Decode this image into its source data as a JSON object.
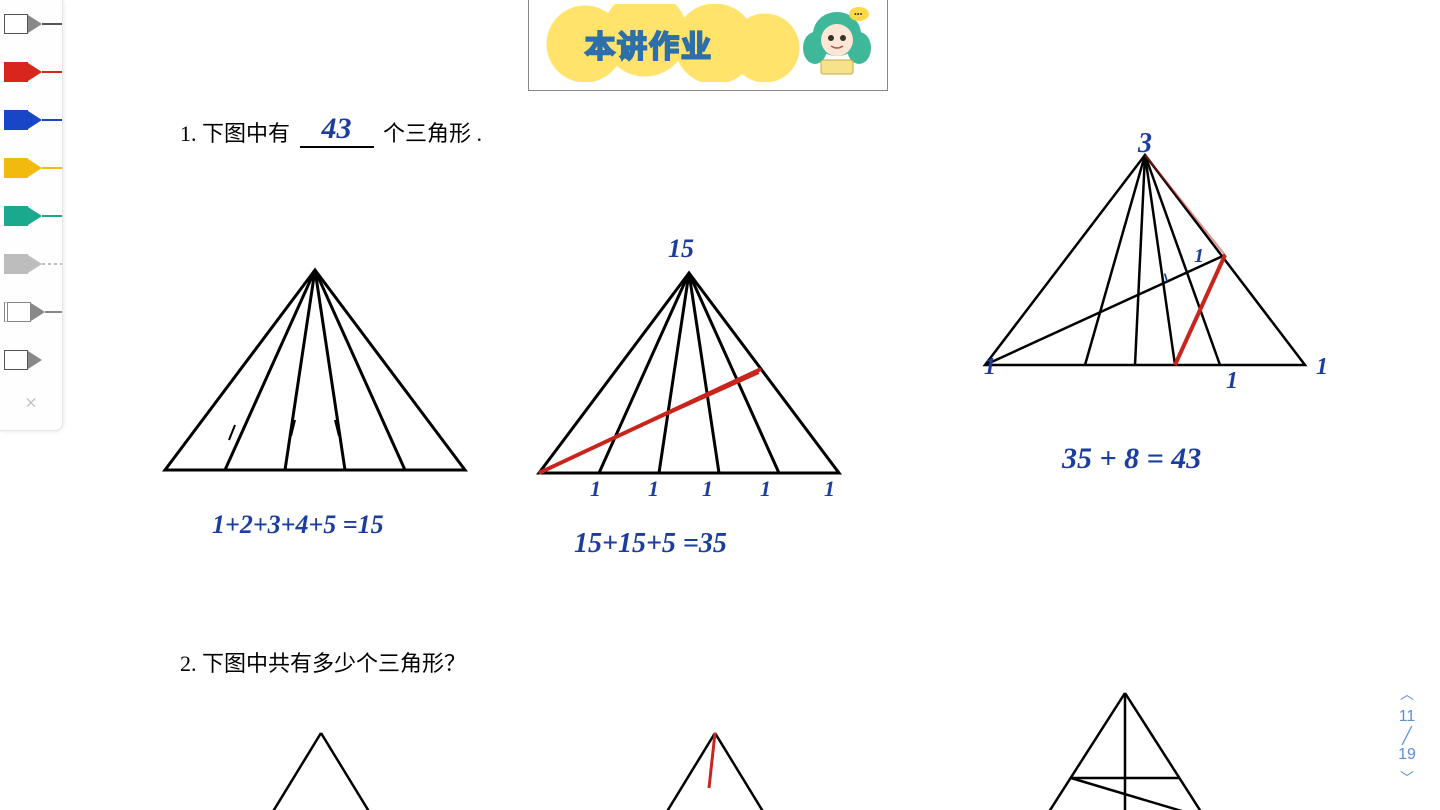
{
  "toolbar": {
    "tools": [
      {
        "name": "pencil-white",
        "fill": "#ffffff",
        "border": "#555555",
        "line": "#555555",
        "dash": "0"
      },
      {
        "name": "pencil-red",
        "fill": "#d9261c",
        "border": "#d9261c",
        "line": "#d9261c",
        "dash": "0"
      },
      {
        "name": "pencil-blue",
        "fill": "#1846c7",
        "border": "#1846c7",
        "line": "#1846c7",
        "dash": "0"
      },
      {
        "name": "pencil-yellow",
        "fill": "#f2b90f",
        "border": "#f2b90f",
        "line": "#f2b90f",
        "dash": "0"
      },
      {
        "name": "pencil-teal",
        "fill": "#1aa98c",
        "border": "#1aa98c",
        "line": "#1aa98c",
        "dash": "0"
      },
      {
        "name": "pencil-gray-dash",
        "fill": "#bdbdbd",
        "border": "#bdbdbd",
        "line": "#bdbdbd",
        "dash": "3 3"
      },
      {
        "name": "pencil-menu",
        "fill": "#ffffff",
        "border": "#888888",
        "line": "#888888",
        "dash": "0"
      },
      {
        "name": "pencil-outline",
        "fill": "#ffffff",
        "border": "#555555",
        "line": "transparent",
        "dash": "0"
      }
    ],
    "close_label": "×"
  },
  "header": {
    "title": "本讲作业"
  },
  "problems": {
    "p1": {
      "prefix": "1. 下图中有",
      "answer": "43",
      "suffix": "个三角形 ."
    },
    "p2": {
      "text": "2. 下图中共有多少个三角形？"
    }
  },
  "annotations": {
    "t1_calc": "1+2+3+4+5 =15",
    "t2_top": "15",
    "t2_marks": [
      "1",
      "1",
      "1",
      "1",
      "1"
    ],
    "t2_calc": "15+15+5 =35",
    "t3_top": "3",
    "t3_left": "1",
    "t3_mark_a": "1",
    "t3_mark_b": "1",
    "t3_right": "1",
    "t3_calc": "35 + 8 = 43"
  },
  "triangles": {
    "t1": {
      "apex": [
        150,
        0
      ],
      "base_l": [
        0,
        200
      ],
      "base_r": [
        300,
        200
      ],
      "inner_x": [
        60,
        120,
        180,
        240
      ],
      "stroke": "#000000",
      "stroke_width": 3
    },
    "t2": {
      "apex": [
        150,
        0
      ],
      "base_l": [
        0,
        200
      ],
      "base_r": [
        300,
        200
      ],
      "inner_x": [
        60,
        120,
        180,
        240
      ],
      "red_line": [
        [
          0,
          200
        ],
        [
          220,
          95
        ]
      ],
      "stroke": "#000000",
      "red": "#c8251d",
      "stroke_width": 3
    },
    "t3": {
      "apex": [
        160,
        0
      ],
      "base_l": [
        0,
        210
      ],
      "base_r": [
        320,
        210
      ],
      "inner_x": [
        100,
        150,
        190,
        235
      ],
      "trans1": [
        [
          0,
          210
        ],
        [
          240,
          100
        ]
      ],
      "trans2": [
        [
          190,
          210
        ],
        [
          240,
          100
        ]
      ],
      "red_line": [
        [
          190,
          210
        ],
        [
          240,
          100
        ]
      ],
      "stroke": "#000000",
      "red": "#c8251d",
      "stroke_width": 2.5
    },
    "bottom": {
      "b1": {
        "apex": [
          80,
          0
        ],
        "bl": [
          0,
          130
        ],
        "br": [
          160,
          130
        ]
      },
      "b2": {
        "apex": [
          80,
          0
        ],
        "bl": [
          0,
          130
        ],
        "br": [
          160,
          130
        ],
        "red_top": true
      },
      "b3": {
        "apex": [
          80,
          0
        ],
        "bl": [
          0,
          130
        ],
        "br": [
          160,
          130
        ],
        "inner": true
      }
    }
  },
  "page_nav": {
    "up": "︿",
    "current": "11",
    "sep": "╱",
    "total": "19",
    "down": "﹀"
  },
  "colors": {
    "handwriting": "#1a3d9e",
    "print": "#000000",
    "red_stroke": "#c8251d",
    "nav": "#5b8fd6"
  }
}
